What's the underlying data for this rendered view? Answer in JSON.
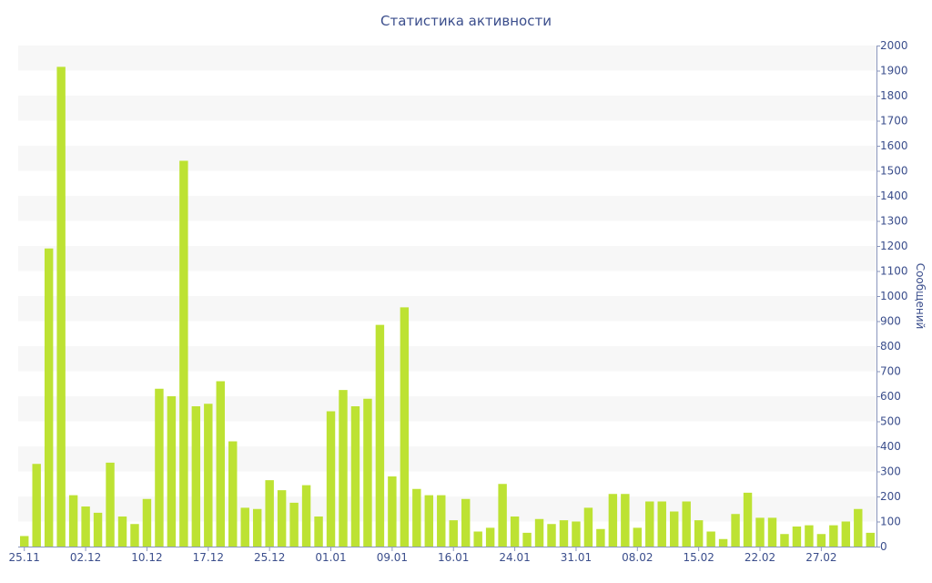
{
  "chart_data": {
    "type": "bar",
    "title": "Статистика активности",
    "ylabel": "Сообщений",
    "xlabel": "",
    "ylim": [
      0,
      2000
    ],
    "yticks": [
      0,
      100,
      200,
      300,
      400,
      500,
      600,
      700,
      800,
      900,
      1000,
      1100,
      1200,
      1300,
      1400,
      1500,
      1600,
      1700,
      1800,
      1900,
      2000
    ],
    "y_axis_side": "right",
    "grid": "alternating horizontal bands",
    "bar_color": "#bde233",
    "band_color": "#f7f7f7",
    "text_color": "#3b4e8c",
    "x_tick_labels": [
      {
        "label": "25.11",
        "index": 0
      },
      {
        "label": "02.12",
        "index": 5
      },
      {
        "label": "10.12",
        "index": 10
      },
      {
        "label": "17.12",
        "index": 15
      },
      {
        "label": "25.12",
        "index": 20
      },
      {
        "label": "01.01",
        "index": 25
      },
      {
        "label": "09.01",
        "index": 30
      },
      {
        "label": "16.01",
        "index": 35
      },
      {
        "label": "24.01",
        "index": 40
      },
      {
        "label": "31.01",
        "index": 45
      },
      {
        "label": "08.02",
        "index": 50
      },
      {
        "label": "15.02",
        "index": 55
      },
      {
        "label": "22.02",
        "index": 60
      },
      {
        "label": "27.02",
        "index": 65
      }
    ],
    "values": [
      42,
      330,
      1190,
      1915,
      205,
      160,
      135,
      335,
      120,
      90,
      190,
      630,
      600,
      1540,
      560,
      570,
      660,
      420,
      155,
      150,
      265,
      225,
      175,
      245,
      120,
      540,
      625,
      560,
      590,
      885,
      280,
      955,
      230,
      205,
      205,
      105,
      190,
      60,
      75,
      250,
      120,
      55,
      110,
      90,
      105,
      100,
      155,
      70,
      210,
      210,
      75,
      180,
      180,
      140,
      180,
      105,
      60,
      30,
      130,
      215,
      115,
      115,
      50,
      80,
      85,
      50,
      85,
      100,
      150,
      55
    ]
  }
}
